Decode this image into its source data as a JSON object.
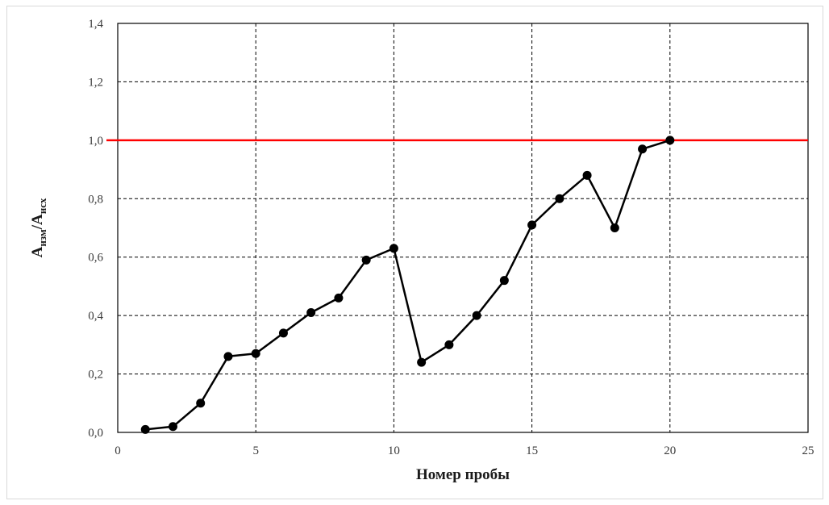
{
  "chart_data": {
    "type": "line",
    "title": "",
    "xlabel": "Номер пробы",
    "ylabel": {
      "main": "А",
      "sub1": "изм",
      "sep": "/А",
      "sub2": "исх"
    },
    "xlim": [
      0,
      25
    ],
    "ylim": [
      0,
      1.4
    ],
    "xticks": [
      0,
      5,
      10,
      15,
      20,
      25
    ],
    "xtick_labels": [
      "0",
      "5",
      "10",
      "15",
      "20",
      "25"
    ],
    "yticks": [
      0,
      0.2,
      0.4,
      0.6,
      0.8,
      1.0,
      1.2,
      1.4
    ],
    "ytick_labels": [
      "0,0",
      "0,2",
      "0,4",
      "0,6",
      "0,8",
      "1,0",
      "1,2",
      "1,4"
    ],
    "grid": true,
    "grid_style": "dashed",
    "legend": "none",
    "series": [
      {
        "color": "#000000",
        "marker": "circle",
        "x": [
          1,
          2,
          3,
          4,
          5,
          6,
          7,
          8,
          9,
          10,
          11,
          12,
          13,
          14,
          15,
          16,
          17,
          18,
          19,
          20
        ],
        "y": [
          0.01,
          0.02,
          0.1,
          0.26,
          0.27,
          0.34,
          0.41,
          0.46,
          0.59,
          0.63,
          0.24,
          0.3,
          0.4,
          0.52,
          0.71,
          0.8,
          0.88,
          0.7,
          0.97,
          1.0
        ]
      }
    ],
    "reference_lines": [
      {
        "y": 1.0,
        "color": "#ff0000"
      }
    ]
  }
}
